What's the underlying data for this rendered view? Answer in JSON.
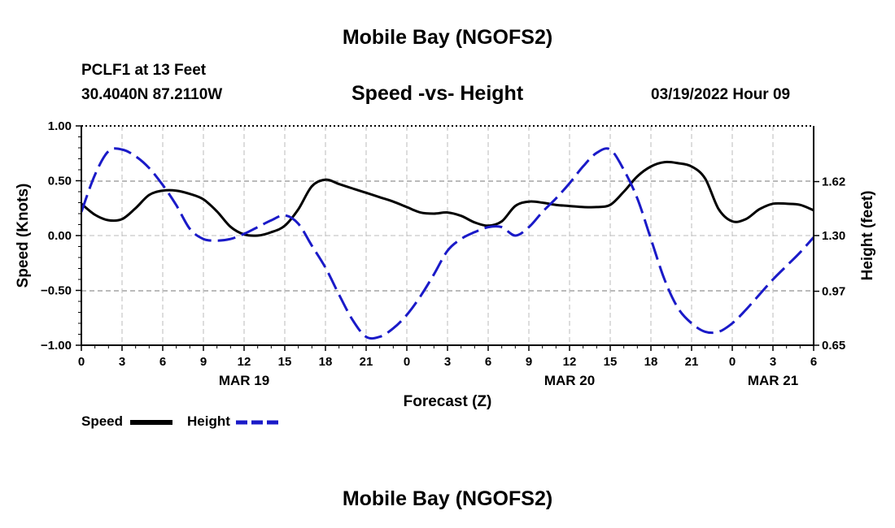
{
  "page": {
    "title": "Mobile Bay (NGOFS2)",
    "station": "PCLF1 at 13 Feet",
    "coordinates": "30.4040N  87.2110W",
    "chart_title": "Speed -vs- Height",
    "timestamp": "03/19/2022 Hour 09",
    "footer_title": "Mobile Bay (NGOFS2)"
  },
  "legend": {
    "speed_label": "Speed",
    "height_label": "Height"
  },
  "colors": {
    "speed": "#000000",
    "height": "#1a1ac8",
    "grid": "#bbbbbb"
  },
  "chart_data": {
    "type": "line",
    "title": "Speed -vs- Height",
    "xlabel": "Forecast (Z)",
    "ylabel": "Speed (Knots)",
    "y2label": "Height (feet)",
    "xlim": [
      0,
      54
    ],
    "ylim": [
      -1.0,
      1.0
    ],
    "y2lim": [
      0.65,
      1.95
    ],
    "x_ticks": [
      0,
      3,
      6,
      9,
      12,
      15,
      18,
      21,
      24,
      27,
      30,
      33,
      36,
      39,
      42,
      45,
      48,
      51,
      54
    ],
    "x_tick_labels": [
      "0",
      "3",
      "6",
      "9",
      "12",
      "15",
      "18",
      "21",
      "0",
      "3",
      "6",
      "9",
      "12",
      "15",
      "18",
      "21",
      "0",
      "3",
      "6"
    ],
    "date_labels": [
      {
        "x": 12,
        "label": "MAR 19"
      },
      {
        "x": 36,
        "label": "MAR 20"
      },
      {
        "x": 51,
        "label": "MAR 21"
      }
    ],
    "y_ticks": [
      -1.0,
      -0.5,
      0.0,
      0.5,
      1.0
    ],
    "y_tick_labels": [
      "−1.00",
      "−0.50",
      "0.00",
      "0.50",
      "1.00"
    ],
    "y2_ticks": [
      0.65,
      0.97,
      1.3,
      1.62
    ],
    "y2_tick_labels": [
      "0.65",
      "0.97",
      "1.30",
      "1.62"
    ],
    "grid": true,
    "legend_position": "bottom-left",
    "series": [
      {
        "name": "Speed",
        "axis": "left",
        "style": "solid",
        "x": [
          0,
          1,
          2,
          3,
          4,
          5,
          6,
          7,
          8,
          9,
          10,
          11,
          12,
          13,
          14,
          15,
          16,
          17,
          18,
          19,
          20,
          21,
          22,
          23,
          24,
          25,
          26,
          27,
          28,
          29,
          30,
          31,
          32,
          33,
          34,
          35,
          36,
          37,
          38,
          39,
          40,
          41,
          42,
          43,
          44,
          45,
          46,
          47,
          48,
          49,
          50,
          51,
          52,
          53,
          54
        ],
        "y": [
          0.29,
          0.19,
          0.14,
          0.15,
          0.25,
          0.37,
          0.41,
          0.41,
          0.38,
          0.33,
          0.22,
          0.08,
          0.01,
          0.0,
          0.03,
          0.09,
          0.24,
          0.45,
          0.51,
          0.47,
          0.43,
          0.39,
          0.35,
          0.31,
          0.26,
          0.21,
          0.2,
          0.21,
          0.18,
          0.12,
          0.09,
          0.13,
          0.27,
          0.31,
          0.3,
          0.28,
          0.27,
          0.26,
          0.26,
          0.28,
          0.4,
          0.54,
          0.63,
          0.67,
          0.66,
          0.63,
          0.52,
          0.24,
          0.13,
          0.15,
          0.24,
          0.29,
          0.29,
          0.28,
          0.23
        ]
      },
      {
        "name": "Height",
        "axis": "right",
        "style": "dashed",
        "x": [
          0,
          1,
          2,
          3,
          4,
          5,
          6,
          7,
          8,
          9,
          10,
          11,
          12,
          13,
          14,
          15,
          16,
          17,
          18,
          19,
          20,
          21,
          22,
          23,
          24,
          25,
          26,
          27,
          28,
          29,
          30,
          31,
          32,
          33,
          34,
          35,
          36,
          37,
          38,
          39,
          40,
          41,
          42,
          43,
          44,
          45,
          46,
          47,
          48,
          49,
          50,
          51,
          52,
          53,
          54
        ],
        "y": [
          1.44,
          1.66,
          1.8,
          1.81,
          1.77,
          1.7,
          1.6,
          1.48,
          1.34,
          1.28,
          1.27,
          1.28,
          1.31,
          1.35,
          1.39,
          1.42,
          1.37,
          1.24,
          1.11,
          0.95,
          0.8,
          0.7,
          0.7,
          0.75,
          0.83,
          0.94,
          1.07,
          1.21,
          1.28,
          1.32,
          1.35,
          1.35,
          1.3,
          1.35,
          1.44,
          1.52,
          1.61,
          1.71,
          1.79,
          1.81,
          1.69,
          1.52,
          1.28,
          1.04,
          0.87,
          0.78,
          0.73,
          0.73,
          0.78,
          0.86,
          0.95,
          1.04,
          1.12,
          1.2,
          1.29
        ]
      }
    ]
  }
}
